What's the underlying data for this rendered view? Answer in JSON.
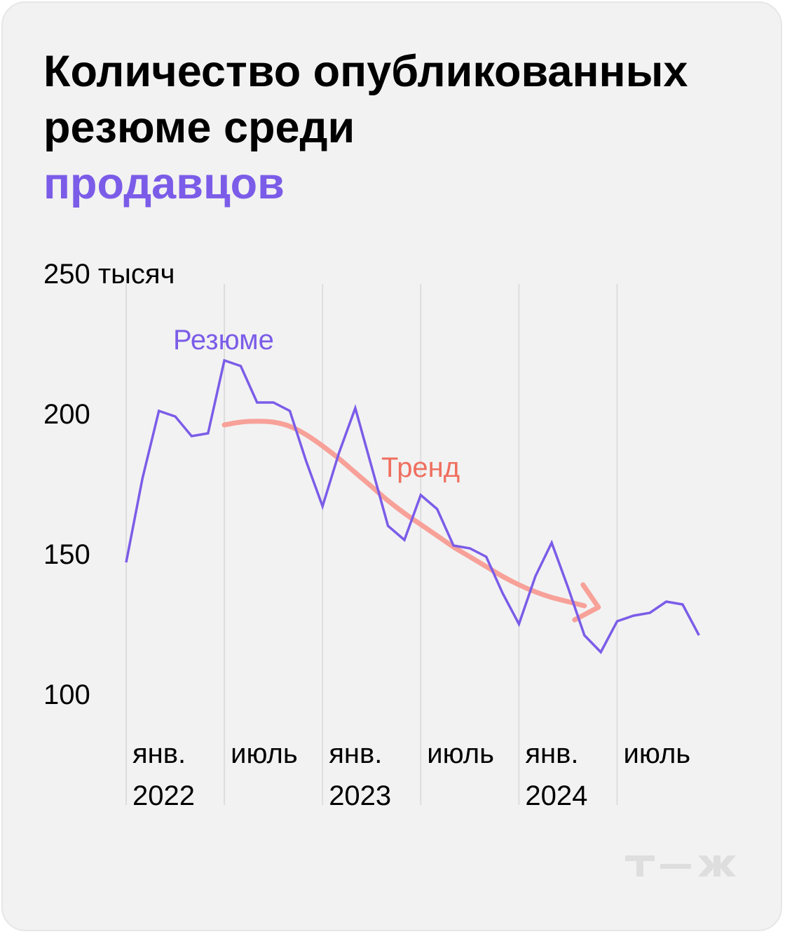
{
  "title": {
    "line1": "Количество опубликованных",
    "line2": "резюме среди",
    "line3": "продавцов"
  },
  "colors": {
    "background": "#f2f2f2",
    "accent": "#7b5ce8",
    "resume_line": "#7b5ce8",
    "trend_line": "#f7a199",
    "trend_label": "#ef6f5f",
    "grid": "#dddddd",
    "logo": "#dedede"
  },
  "logo": {
    "icon": "tzh-logo-icon"
  },
  "chart_data": {
    "type": "line",
    "unit": "тысяч",
    "y_ticks": [
      {
        "value": 250,
        "label": "250 тысяч"
      },
      {
        "value": 200,
        "label": "200"
      },
      {
        "value": 150,
        "label": "150"
      },
      {
        "value": 100,
        "label": "100"
      }
    ],
    "ylim": [
      100,
      250
    ],
    "x_ticks": [
      {
        "index": 0,
        "line1": "янв.",
        "line2": "2022"
      },
      {
        "index": 6,
        "line1": "июль",
        "line2": ""
      },
      {
        "index": 12,
        "line1": "янв.",
        "line2": "2023"
      },
      {
        "index": 18,
        "line1": "июль",
        "line2": ""
      },
      {
        "index": 24,
        "line1": "янв.",
        "line2": "2024"
      },
      {
        "index": 30,
        "line1": "июль",
        "line2": ""
      }
    ],
    "grid": {
      "vertical": true,
      "horizontal": false
    },
    "series": [
      {
        "name": "Резюме",
        "values": [
          147,
          177,
          201,
          199,
          192,
          193,
          219,
          217,
          204,
          204,
          201,
          183,
          167,
          186,
          202,
          181,
          160,
          155,
          171,
          166,
          153,
          152,
          149,
          136,
          125,
          142,
          154,
          138,
          121,
          115,
          126,
          128,
          129,
          133,
          132,
          121
        ]
      },
      {
        "name": "Тренд",
        "x": [
          6,
          7,
          8,
          9,
          10,
          11,
          12,
          13,
          14,
          15,
          16,
          17,
          18,
          19,
          20,
          21,
          22,
          23,
          24,
          25,
          26,
          27,
          28
        ],
        "values": [
          196,
          197,
          197.3,
          197,
          195.5,
          192.5,
          188.5,
          184,
          179,
          174,
          169,
          164.5,
          160.5,
          156.5,
          152.5,
          149,
          145.5,
          142,
          139,
          136.5,
          134.5,
          133,
          131.5
        ]
      }
    ]
  }
}
